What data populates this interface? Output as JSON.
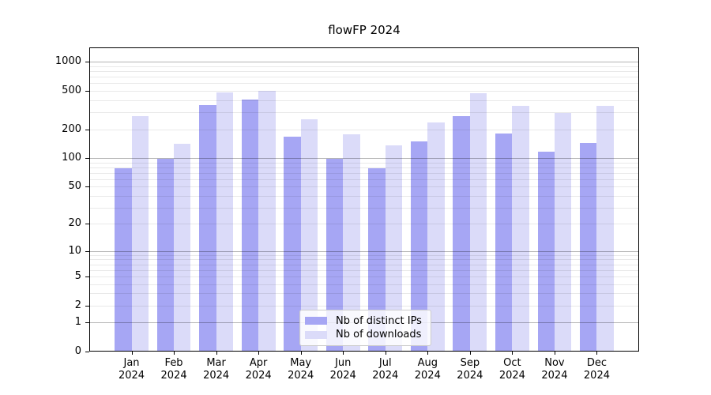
{
  "title": "flowFP 2024",
  "legend": {
    "ips_label": "Nb of distinct IPs",
    "downloads_label": "Nb of downloads"
  },
  "colors": {
    "ips": "#a6a6f4",
    "downloads": "#dbdbf9",
    "grid_major": "#b4b4b4",
    "grid_minor": "#e9e9e9",
    "axis": "#000000"
  },
  "chart_data": {
    "type": "bar",
    "title": "flowFP 2024",
    "y_scale": "log10(1+y)",
    "categories": [
      "Jan",
      "Feb",
      "Mar",
      "Apr",
      "May",
      "Jun",
      "Jul",
      "Aug",
      "Sep",
      "Oct",
      "Nov",
      "Dec"
    ],
    "year": "2024",
    "series": [
      {
        "name": "Nb of distinct IPs",
        "values": [
          78,
          99,
          357,
          406,
          167,
          99,
          78,
          148,
          273,
          182,
          116,
          145
        ]
      },
      {
        "name": "Nb of downloads",
        "values": [
          272,
          142,
          485,
          504,
          255,
          178,
          136,
          235,
          478,
          350,
          296,
          350
        ]
      }
    ],
    "y_ticks": [
      0,
      1,
      2,
      5,
      10,
      20,
      50,
      100,
      200,
      500,
      1000
    ],
    "ylim": [
      0,
      1415
    ],
    "grid": true,
    "grid_major_at": [
      1,
      10,
      100,
      1000
    ],
    "legend_position": "lower center",
    "xlabel": "",
    "ylabel": ""
  }
}
